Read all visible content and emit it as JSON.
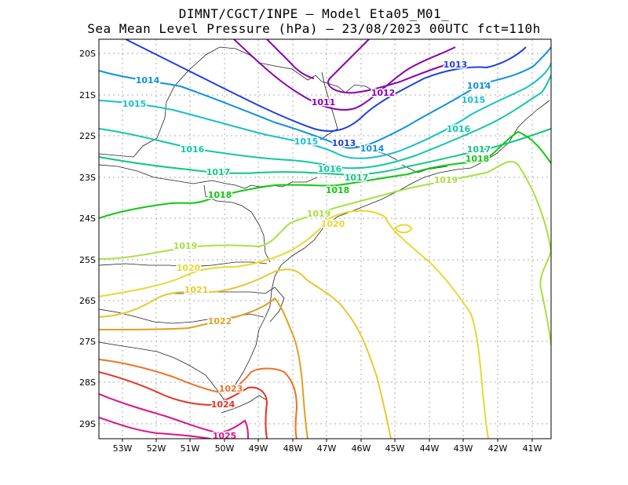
{
  "title_line1": "DIMNT/CGCT/INPE —  Model Eta05_M01_",
  "title_line2": "Sea Mean Level Pressure (hPa) — 23/08/2023 00UTC fct=110h",
  "lon_ticks": [
    "53W",
    "52W",
    "51W",
    "50W",
    "49W",
    "48W",
    "47W",
    "46W",
    "45W",
    "44W",
    "43W",
    "42W",
    "41W"
  ],
  "lat_ticks": [
    "20S",
    "21S",
    "22S",
    "23S",
    "24S",
    "25S",
    "26S",
    "27S",
    "28S",
    "29S"
  ],
  "contour_colors": {
    "1011": "#8b00b0",
    "1012": "#8b00b0",
    "1013": "#2040e0",
    "1014": "#1090e0",
    "1015": "#18c0c8",
    "1016": "#10c8a0",
    "1017": "#10c880",
    "1018": "#10c810",
    "1019": "#a8e040",
    "1020": "#e8d830",
    "1021": "#e8c830",
    "1022": "#e0a020",
    "1023": "#f07020",
    "1024": "#e83020",
    "1025": "#e0108a"
  },
  "contour_labels": [
    {
      "text": "1011",
      "level": "1011"
    },
    {
      "text": "1012",
      "level": "1012"
    },
    {
      "text": "1013",
      "level": "1013"
    },
    {
      "text": "1013",
      "level": "1013"
    },
    {
      "text": "1014",
      "level": "1014"
    },
    {
      "text": "1014",
      "level": "1014"
    },
    {
      "text": "1014",
      "level": "1014"
    },
    {
      "text": "1015",
      "level": "1015"
    },
    {
      "text": "1015",
      "level": "1015"
    },
    {
      "text": "1015",
      "level": "1015"
    },
    {
      "text": "1016",
      "level": "1016"
    },
    {
      "text": "1016",
      "level": "1016"
    },
    {
      "text": "1016",
      "level": "1016"
    },
    {
      "text": "1017",
      "level": "1017"
    },
    {
      "text": "1017",
      "level": "1017"
    },
    {
      "text": "1017",
      "level": "1017"
    },
    {
      "text": "1018",
      "level": "1018"
    },
    {
      "text": "1018",
      "level": "1018"
    },
    {
      "text": "1018",
      "level": "1018"
    },
    {
      "text": "1019",
      "level": "1019"
    },
    {
      "text": "1019",
      "level": "1019"
    },
    {
      "text": "1019",
      "level": "1019"
    },
    {
      "text": "1020",
      "level": "1020"
    },
    {
      "text": "1020",
      "level": "1020"
    },
    {
      "text": "1021",
      "level": "1021"
    },
    {
      "text": "1022",
      "level": "1022"
    },
    {
      "text": "1023",
      "level": "1023"
    },
    {
      "text": "1024",
      "level": "1024"
    },
    {
      "text": "1025",
      "level": "1025"
    }
  ]
}
